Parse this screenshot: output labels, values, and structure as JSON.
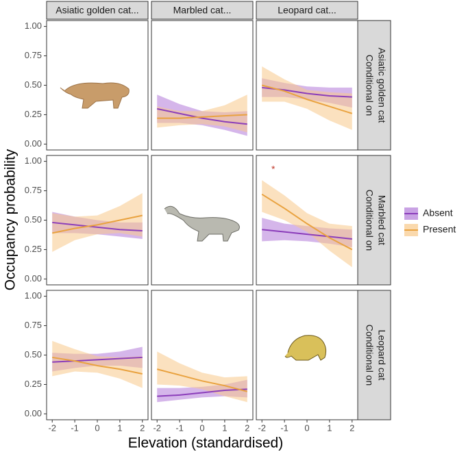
{
  "chart_data": {
    "type": "line",
    "xlabel": "Elevation (standardised)",
    "ylabel": "Occupancy probability",
    "columns": [
      "Asiatic golden cat...",
      "Marbled cat...",
      "Leopard cat..."
    ],
    "rows": [
      [
        "Conditional on",
        "Asiatic golden cat"
      ],
      [
        "Conditional on",
        "Marbled cat"
      ],
      [
        "Conditional on",
        "Leopard cat"
      ]
    ],
    "legend": [
      {
        "name": "Absent",
        "color": "#8b3dba",
        "fill": "#b27ad9"
      },
      {
        "name": "Present",
        "color": "#e9a23f",
        "fill": "#f8c98a"
      }
    ],
    "x": [
      -2,
      -1,
      0,
      1,
      2
    ],
    "xlim": [
      -2.25,
      2.25
    ],
    "xticks": [
      -2,
      -1,
      0,
      1,
      2
    ],
    "ylim": [
      -0.05,
      1.05
    ],
    "yticks": [
      {
        "value": 0,
        "label": "0.00"
      },
      {
        "value": 0.25,
        "label": "0.25"
      },
      {
        "value": 0.5,
        "label": "0.50"
      },
      {
        "value": 0.75,
        "label": "0.75"
      },
      {
        "value": 1,
        "label": "1.00"
      }
    ],
    "grid": false,
    "panels": [
      [
        null,
        {
          "series": [
            {
              "values": [
                0.3,
                0.26,
                0.22,
                0.19,
                0.17
              ],
              "lower": [
                0.18,
                0.18,
                0.16,
                0.12,
                0.07
              ],
              "upper": [
                0.42,
                0.34,
                0.28,
                0.27,
                0.28
              ]
            },
            {
              "values": [
                0.22,
                0.22,
                0.23,
                0.24,
                0.25
              ],
              "lower": [
                0.14,
                0.16,
                0.17,
                0.15,
                0.1
              ],
              "upper": [
                0.32,
                0.28,
                0.28,
                0.33,
                0.42
              ]
            }
          ]
        },
        {
          "series": [
            {
              "values": [
                0.48,
                0.46,
                0.43,
                0.41,
                0.4
              ],
              "lower": [
                0.4,
                0.4,
                0.38,
                0.35,
                0.31
              ],
              "upper": [
                0.56,
                0.52,
                0.49,
                0.48,
                0.48
              ]
            },
            {
              "values": [
                0.5,
                0.45,
                0.38,
                0.32,
                0.26
              ],
              "lower": [
                0.36,
                0.36,
                0.3,
                0.2,
                0.12
              ],
              "upper": [
                0.66,
                0.55,
                0.46,
                0.44,
                0.43
              ]
            }
          ]
        }
      ],
      [
        {
          "series": [
            {
              "values": [
                0.48,
                0.46,
                0.44,
                0.42,
                0.41
              ],
              "lower": [
                0.39,
                0.39,
                0.38,
                0.36,
                0.34
              ],
              "upper": [
                0.57,
                0.53,
                0.5,
                0.48,
                0.48
              ]
            },
            {
              "values": [
                0.39,
                0.43,
                0.46,
                0.5,
                0.54
              ],
              "lower": [
                0.23,
                0.33,
                0.38,
                0.39,
                0.36
              ],
              "upper": [
                0.56,
                0.53,
                0.54,
                0.62,
                0.73
              ]
            }
          ]
        },
        null,
        {
          "series": [
            {
              "values": [
                0.42,
                0.4,
                0.38,
                0.36,
                0.34
              ],
              "lower": [
                0.32,
                0.33,
                0.32,
                0.3,
                0.27
              ],
              "upper": [
                0.52,
                0.47,
                0.45,
                0.43,
                0.42
              ]
            },
            {
              "values": [
                0.72,
                0.6,
                0.47,
                0.35,
                0.25
              ],
              "lower": [
                0.57,
                0.5,
                0.4,
                0.24,
                0.1
              ],
              "upper": [
                0.84,
                0.71,
                0.56,
                0.47,
                0.45
              ]
            }
          ],
          "annotation": {
            "text": "*",
            "x": -1.5,
            "y": 0.93
          }
        }
      ],
      [
        {
          "series": [
            {
              "values": [
                0.44,
                0.45,
                0.46,
                0.47,
                0.48
              ],
              "lower": [
                0.36,
                0.39,
                0.41,
                0.41,
                0.39
              ],
              "upper": [
                0.52,
                0.51,
                0.51,
                0.53,
                0.57
              ]
            },
            {
              "values": [
                0.48,
                0.45,
                0.41,
                0.38,
                0.34
              ],
              "lower": [
                0.32,
                0.36,
                0.35,
                0.3,
                0.22
              ],
              "upper": [
                0.62,
                0.55,
                0.49,
                0.48,
                0.49
              ]
            }
          ]
        },
        {
          "series": [
            {
              "values": [
                0.15,
                0.16,
                0.18,
                0.2,
                0.21
              ],
              "lower": [
                0.1,
                0.12,
                0.14,
                0.15,
                0.14
              ],
              "upper": [
                0.22,
                0.22,
                0.23,
                0.25,
                0.29
              ]
            },
            {
              "values": [
                0.38,
                0.33,
                0.28,
                0.24,
                0.19
              ],
              "lower": [
                0.25,
                0.24,
                0.21,
                0.15,
                0.1
              ],
              "upper": [
                0.53,
                0.43,
                0.35,
                0.31,
                0.32
              ]
            }
          ]
        },
        null
      ]
    ]
  }
}
